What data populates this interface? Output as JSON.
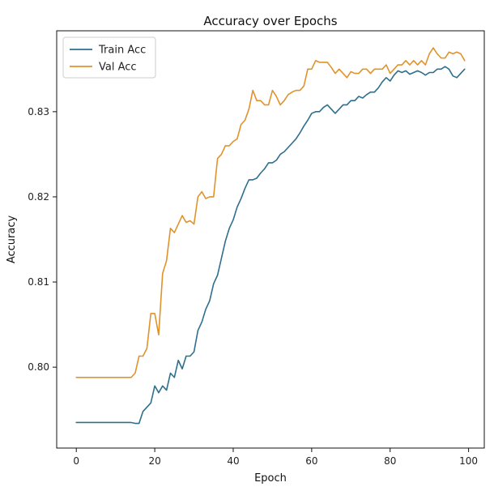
{
  "chart_data": {
    "type": "line",
    "title": "Accuracy over Epochs",
    "xlabel": "Epoch",
    "ylabel": "Accuracy",
    "xlim": [
      -5,
      104
    ],
    "ylim": [
      0.7905,
      0.8395
    ],
    "xticks": [
      0,
      20,
      40,
      60,
      80,
      100
    ],
    "yticks": [
      0.8,
      0.81,
      0.82,
      0.83
    ],
    "xtick_labels": [
      "0",
      "20",
      "40",
      "60",
      "80",
      "100"
    ],
    "ytick_labels": [
      "0.80",
      "0.81",
      "0.82",
      "0.83"
    ],
    "grid": false,
    "legend_position": "top-left",
    "x": [
      0,
      1,
      2,
      3,
      4,
      5,
      6,
      7,
      8,
      9,
      10,
      11,
      12,
      13,
      14,
      15,
      16,
      17,
      18,
      19,
      20,
      21,
      22,
      23,
      24,
      25,
      26,
      27,
      28,
      29,
      30,
      31,
      32,
      33,
      34,
      35,
      36,
      37,
      38,
      39,
      40,
      41,
      42,
      43,
      44,
      45,
      46,
      47,
      48,
      49,
      50,
      51,
      52,
      53,
      54,
      55,
      56,
      57,
      58,
      59,
      60,
      61,
      62,
      63,
      64,
      65,
      66,
      67,
      68,
      69,
      70,
      71,
      72,
      73,
      74,
      75,
      76,
      77,
      78,
      79,
      80,
      81,
      82,
      83,
      84,
      85,
      86,
      87,
      88,
      89,
      90,
      91,
      92,
      93,
      94,
      95,
      96,
      97,
      98,
      99
    ],
    "series": [
      {
        "name": "Train Acc",
        "color": "#2e6f8e",
        "values": [
          0.7935,
          0.7935,
          0.7935,
          0.7935,
          0.7935,
          0.7935,
          0.7935,
          0.7935,
          0.7935,
          0.7935,
          0.7935,
          0.7935,
          0.7935,
          0.7935,
          0.7935,
          0.7934,
          0.7934,
          0.7948,
          0.7953,
          0.7958,
          0.7978,
          0.797,
          0.7978,
          0.7973,
          0.7993,
          0.7988,
          0.8008,
          0.7998,
          0.8013,
          0.8013,
          0.8018,
          0.8043,
          0.8053,
          0.8068,
          0.8078,
          0.8098,
          0.8108,
          0.8128,
          0.8148,
          0.8163,
          0.8173,
          0.8188,
          0.8198,
          0.821,
          0.822,
          0.822,
          0.8222,
          0.8228,
          0.8233,
          0.824,
          0.824,
          0.8243,
          0.825,
          0.8253,
          0.8258,
          0.8263,
          0.8268,
          0.8275,
          0.8283,
          0.829,
          0.8298,
          0.83,
          0.83,
          0.8305,
          0.8308,
          0.8303,
          0.8298,
          0.8303,
          0.8308,
          0.8308,
          0.8313,
          0.8313,
          0.8318,
          0.8316,
          0.832,
          0.8323,
          0.8323,
          0.8328,
          0.8335,
          0.834,
          0.8336,
          0.8343,
          0.8348,
          0.8346,
          0.8348,
          0.8344,
          0.8346,
          0.8348,
          0.8346,
          0.8343,
          0.8346,
          0.8346,
          0.835,
          0.835,
          0.8353,
          0.835,
          0.8342,
          0.834,
          0.8345,
          0.835
        ]
      },
      {
        "name": "Val Acc",
        "color": "#e0932b",
        "values": [
          0.7988,
          0.7988,
          0.7988,
          0.7988,
          0.7988,
          0.7988,
          0.7988,
          0.7988,
          0.7988,
          0.7988,
          0.7988,
          0.7988,
          0.7988,
          0.7988,
          0.7988,
          0.7993,
          0.8013,
          0.8013,
          0.8022,
          0.8063,
          0.8063,
          0.8038,
          0.811,
          0.8125,
          0.8163,
          0.8158,
          0.8168,
          0.8178,
          0.817,
          0.8172,
          0.8168,
          0.82,
          0.8206,
          0.8198,
          0.82,
          0.82,
          0.8245,
          0.825,
          0.826,
          0.826,
          0.8265,
          0.8268,
          0.8285,
          0.829,
          0.8303,
          0.8325,
          0.8313,
          0.8313,
          0.8308,
          0.8308,
          0.8325,
          0.8318,
          0.8308,
          0.8313,
          0.832,
          0.8323,
          0.8325,
          0.8325,
          0.833,
          0.835,
          0.835,
          0.836,
          0.8358,
          0.8358,
          0.8358,
          0.8352,
          0.8345,
          0.835,
          0.8345,
          0.834,
          0.8347,
          0.8345,
          0.8345,
          0.835,
          0.835,
          0.8345,
          0.835,
          0.835,
          0.835,
          0.8355,
          0.8345,
          0.835,
          0.8355,
          0.8355,
          0.836,
          0.8355,
          0.836,
          0.8355,
          0.836,
          0.8355,
          0.8368,
          0.8375,
          0.8368,
          0.8363,
          0.8363,
          0.837,
          0.8368,
          0.837,
          0.8368,
          0.836
        ]
      }
    ]
  }
}
